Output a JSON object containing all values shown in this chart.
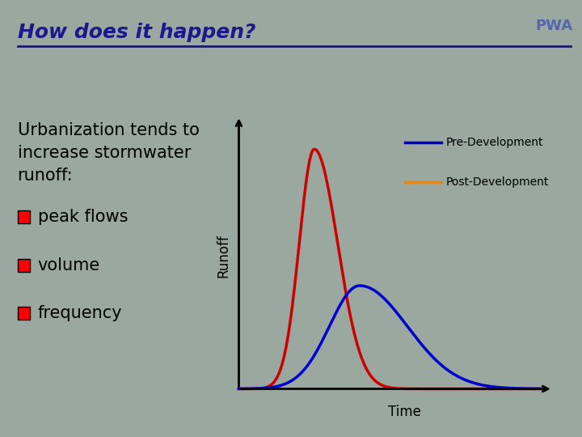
{
  "title": "How does it happen?",
  "title_color": "#1a1a8c",
  "title_fontsize": 18,
  "background_color": "#9aA8A0",
  "subtitle_text": "Urbanization tends to\nincrease stormwater\nrunoff:",
  "subtitle_fontsize": 15,
  "bullet_items": [
    "peak flows",
    "volume",
    "frequency"
  ],
  "bullet_color": "#ff0000",
  "bullet_text_color": "#000000",
  "bullet_fontsize": 15,
  "ylabel": "Runoff",
  "xlabel": "Time",
  "pre_dev_color": "#0000cc",
  "post_dev_color": "#cc0000",
  "legend_pre": "Pre-Development",
  "legend_post": "Post-Development",
  "legend_line_pre": "#0000cc",
  "legend_line_post": "#e08820",
  "axis_color": "#000000",
  "underline_color": "#1a1a6c",
  "pwa_text": "PWA",
  "pwa_color": "#5566aa"
}
